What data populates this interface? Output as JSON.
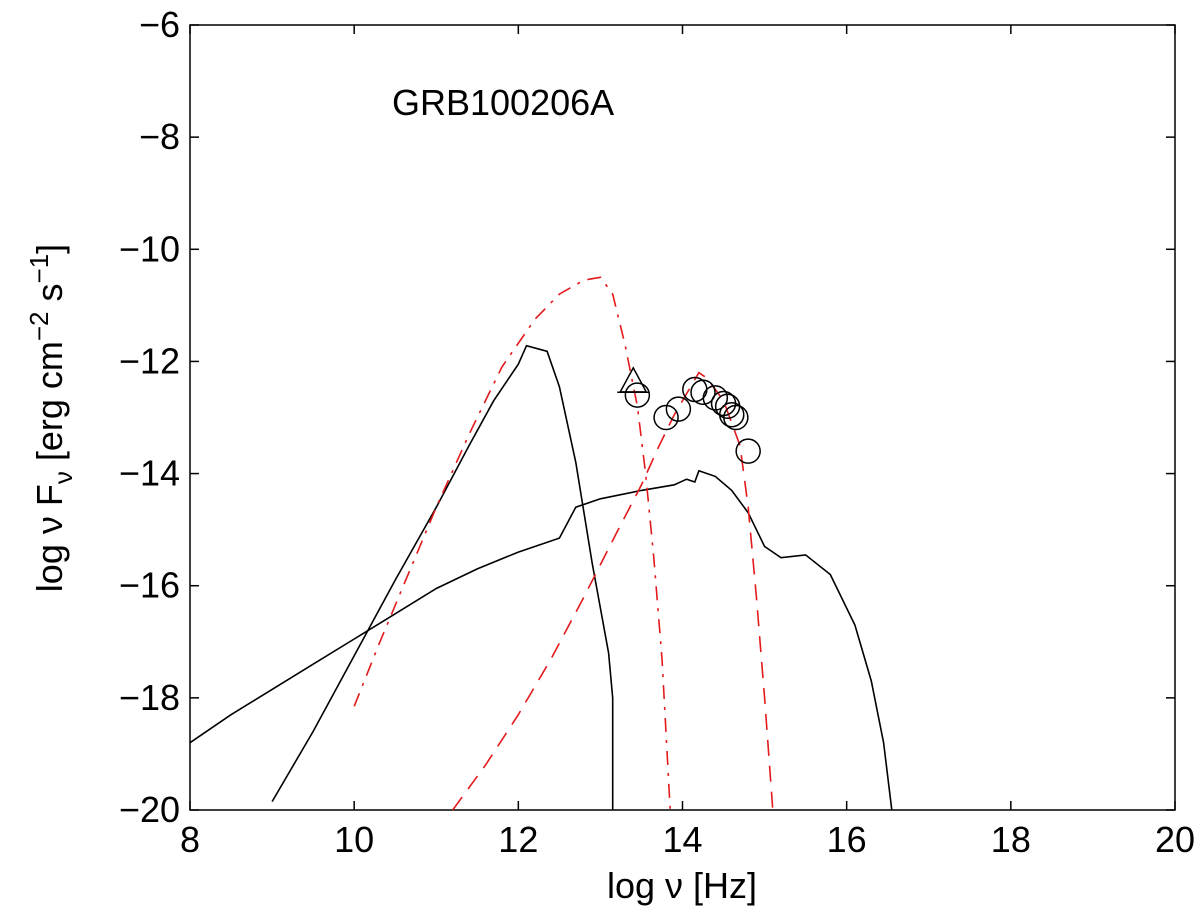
{
  "chart_data": {
    "type": "line",
    "title": "GRB100206A",
    "xlabel": "log ν [Hz]",
    "ylabel": "log ν F_ν [erg cm^−2 s^−1]",
    "ylabel_parts": {
      "main": "log ν F",
      "sub1": "ν",
      "mid": " [erg cm",
      "sup1": "−2",
      "mid2": " s",
      "sup2": "−1",
      "end": "]"
    },
    "xlim": [
      8,
      20
    ],
    "ylim": [
      -20,
      -6
    ],
    "xticks": [
      8,
      10,
      12,
      14,
      16,
      18,
      20
    ],
    "yticks": [
      -20,
      -18,
      -16,
      -14,
      -12,
      -10,
      -8,
      -6
    ],
    "xtick_labels": [
      "8",
      "10",
      "12",
      "14",
      "16",
      "18",
      "20"
    ],
    "ytick_labels": [
      "−20",
      "−18",
      "−16",
      "−14",
      "−12",
      "−10",
      "−8",
      "−6"
    ],
    "grid": false,
    "series": [
      {
        "id": "solid-a",
        "style": "solid",
        "color": "#000000",
        "points": [
          [
            9.0,
            -19.85
          ],
          [
            9.5,
            -18.6
          ],
          [
            10.0,
            -17.25
          ],
          [
            10.5,
            -15.9
          ],
          [
            11.0,
            -14.6
          ],
          [
            11.4,
            -13.5
          ],
          [
            11.7,
            -12.7
          ],
          [
            12.0,
            -12.05
          ],
          [
            12.1,
            -11.72
          ],
          [
            12.35,
            -11.82
          ],
          [
            12.5,
            -12.45
          ],
          [
            12.7,
            -13.8
          ],
          [
            12.9,
            -15.6
          ],
          [
            13.1,
            -17.2
          ],
          [
            13.15,
            -18.0
          ],
          [
            13.15,
            -20.0
          ]
        ]
      },
      {
        "id": "solid-b",
        "style": "solid",
        "color": "#000000",
        "points": [
          [
            8.0,
            -18.8
          ],
          [
            8.5,
            -18.3
          ],
          [
            9.0,
            -17.85
          ],
          [
            9.5,
            -17.4
          ],
          [
            10.0,
            -16.95
          ],
          [
            10.5,
            -16.5
          ],
          [
            11.0,
            -16.05
          ],
          [
            11.5,
            -15.7
          ],
          [
            12.0,
            -15.4
          ],
          [
            12.5,
            -15.15
          ],
          [
            12.7,
            -14.6
          ],
          [
            13.0,
            -14.45
          ],
          [
            13.5,
            -14.3
          ],
          [
            13.9,
            -14.2
          ],
          [
            14.05,
            -14.1
          ],
          [
            14.15,
            -14.15
          ],
          [
            14.2,
            -13.95
          ],
          [
            14.4,
            -14.05
          ],
          [
            14.6,
            -14.3
          ],
          [
            14.8,
            -14.7
          ],
          [
            15.0,
            -15.3
          ],
          [
            15.2,
            -15.5
          ],
          [
            15.5,
            -15.45
          ],
          [
            15.8,
            -15.8
          ],
          [
            16.1,
            -16.7
          ],
          [
            16.3,
            -17.7
          ],
          [
            16.45,
            -18.8
          ],
          [
            16.55,
            -20.0
          ]
        ]
      },
      {
        "id": "dashdot-red",
        "style": "dashdot",
        "color": "#e31a1c",
        "points": [
          [
            10.0,
            -18.15
          ],
          [
            10.3,
            -17.05
          ],
          [
            10.6,
            -16.0
          ],
          [
            11.0,
            -14.6
          ],
          [
            11.4,
            -13.3
          ],
          [
            11.8,
            -12.1
          ],
          [
            12.2,
            -11.25
          ],
          [
            12.5,
            -10.8
          ],
          [
            12.8,
            -10.55
          ],
          [
            13.0,
            -10.5
          ],
          [
            13.15,
            -10.8
          ],
          [
            13.3,
            -11.7
          ],
          [
            13.45,
            -12.8
          ],
          [
            13.55,
            -14.0
          ],
          [
            13.65,
            -15.5
          ],
          [
            13.75,
            -17.3
          ],
          [
            13.85,
            -20.0
          ]
        ]
      },
      {
        "id": "dashed-red",
        "style": "dashed",
        "color": "#e31a1c",
        "points": [
          [
            11.2,
            -20.0
          ],
          [
            11.6,
            -19.2
          ],
          [
            12.0,
            -18.3
          ],
          [
            12.4,
            -17.3
          ],
          [
            12.8,
            -16.2
          ],
          [
            13.2,
            -15.05
          ],
          [
            13.5,
            -14.2
          ],
          [
            13.7,
            -13.55
          ],
          [
            13.9,
            -12.95
          ],
          [
            14.1,
            -12.45
          ],
          [
            14.2,
            -12.2
          ],
          [
            14.3,
            -12.3
          ],
          [
            14.5,
            -12.7
          ],
          [
            14.7,
            -13.5
          ],
          [
            14.8,
            -14.6
          ],
          [
            14.9,
            -16.2
          ],
          [
            15.0,
            -18.0
          ],
          [
            15.1,
            -20.0
          ]
        ]
      }
    ],
    "markers": {
      "circles": [
        [
          13.45,
          -12.6
        ],
        [
          13.8,
          -13.0
        ],
        [
          13.95,
          -12.85
        ],
        [
          14.15,
          -12.5
        ],
        [
          14.25,
          -12.55
        ],
        [
          14.4,
          -12.65
        ],
        [
          14.5,
          -12.75
        ],
        [
          14.55,
          -12.8
        ],
        [
          14.6,
          -12.95
        ],
        [
          14.65,
          -13.0
        ],
        [
          14.8,
          -13.6
        ]
      ],
      "triangle": [
        13.4,
        -12.4
      ],
      "triangle_bar": [
        13.4,
        -12.55
      ]
    }
  }
}
